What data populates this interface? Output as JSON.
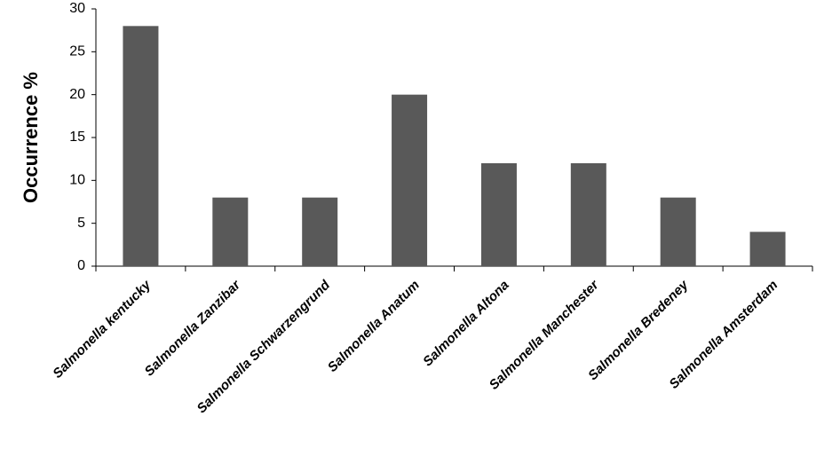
{
  "chart_data": {
    "type": "bar",
    "y_label": "Occurrence %",
    "categories": [
      "Salmonella kentucky",
      "Salmonella Zanzibar",
      "Salmonella Schwarzengrund",
      "Salmonella Anatum",
      "Salmonella Altona",
      "Salmonella Manchester",
      "Salmonella Bredeney",
      "Salmonella Amsterdam"
    ],
    "values": [
      28,
      8,
      8,
      20,
      12,
      12,
      8,
      4
    ],
    "color": "#595959",
    "ylim": [
      0,
      30
    ],
    "yticks": [
      0,
      5,
      10,
      15,
      20,
      25,
      30
    ],
    "grid": false
  }
}
